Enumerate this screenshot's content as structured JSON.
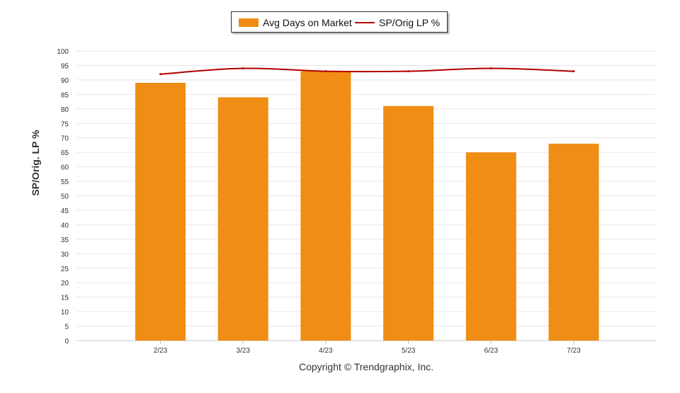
{
  "chart_data": {
    "type": "bar",
    "categories": [
      "2/23",
      "3/23",
      "4/23",
      "5/23",
      "6/23",
      "7/23"
    ],
    "series": [
      {
        "name": "Avg Days on Market",
        "type": "bar",
        "values": [
          89,
          84,
          93,
          81,
          65,
          68
        ],
        "color": "#f08d14"
      },
      {
        "name": "SP/Orig LP %",
        "type": "line",
        "values": [
          92,
          94,
          93,
          93,
          94,
          93
        ],
        "color": "#b30000"
      }
    ],
    "ylabel": "SP/Orig. LP %",
    "ylim": [
      0,
      100
    ],
    "yticks": [
      0,
      5,
      10,
      15,
      20,
      25,
      30,
      35,
      40,
      45,
      50,
      55,
      60,
      65,
      70,
      75,
      80,
      85,
      90,
      95,
      100
    ],
    "grid": true,
    "legend_position": "top-center"
  },
  "footer": {
    "copyright": "Copyright © Trendgraphix, Inc."
  }
}
